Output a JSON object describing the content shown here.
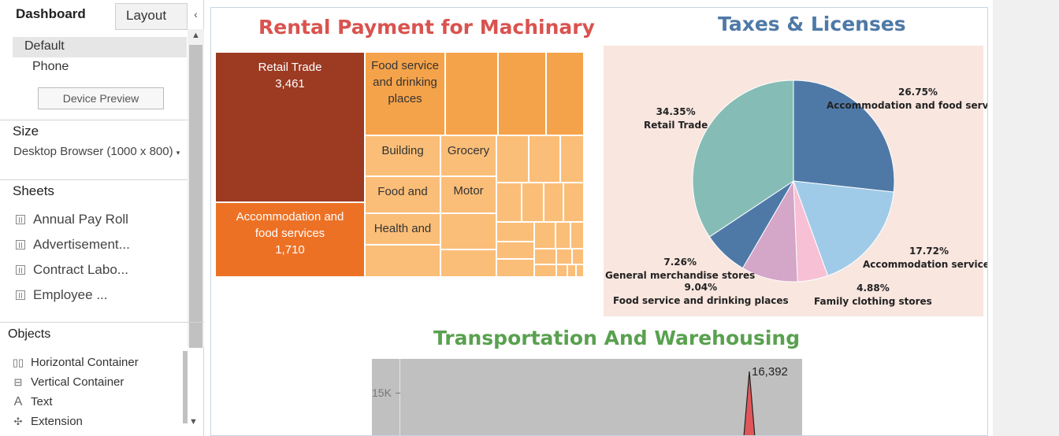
{
  "sidepane": {
    "tabs": {
      "dashboard": "Dashboard",
      "layout": "Layout",
      "collapse": "‹"
    },
    "devices": {
      "default": "Default",
      "phone": "Phone",
      "preview_button": "Device Preview"
    },
    "size": {
      "title": "Size",
      "value": "Desktop Browser (1000 x 800)",
      "arrow": "▾"
    },
    "sheets": {
      "title": "Sheets",
      "items": [
        "Annual Pay Roll",
        "Advertisement...",
        "Contract Labo...",
        "Employee ..."
      ]
    },
    "objects": {
      "title": "Objects",
      "items": [
        {
          "label": "Horizontal Container",
          "icon": "horizontal-container-icon",
          "glyph": "▯▯"
        },
        {
          "label": "Vertical Container",
          "icon": "vertical-container-icon",
          "glyph": "⊟"
        },
        {
          "label": "Text",
          "icon": "text-icon",
          "glyph": "A"
        },
        {
          "label": "Extension",
          "icon": "extension-icon",
          "glyph": "✣"
        }
      ]
    },
    "scroll": {
      "up": "▲",
      "down": "▼"
    }
  },
  "dashboard": {
    "rental": {
      "title": "Rental Payment for Machinary",
      "cells": {
        "retail_label": "Retail Trade",
        "retail_value": "3,461",
        "accom_label": "Accommodation and food services",
        "accom_value": "1,710",
        "food_label": "Food service and drinking places",
        "building": "Building",
        "grocery": "Grocery",
        "food_and": "Food and",
        "motor": "Motor",
        "health": "Health and"
      },
      "colors": {
        "dark": "#9c3a22",
        "mid": "#ed7125",
        "light1": "#f5a34a",
        "light2": "#f8b166",
        "light3": "#fbbe78"
      }
    },
    "taxes": {
      "title": "Taxes & Licenses",
      "chart_data": {
        "type": "pie",
        "title": "Taxes & Licenses",
        "slices": [
          {
            "label": "Accommodation and food services",
            "value": 26.75,
            "color": "#4e79a7"
          },
          {
            "label": "Accommodation services",
            "value": 17.72,
            "color": "#a0cbe8"
          },
          {
            "label": "Family clothing stores",
            "value": 4.88,
            "color": "#f7c0d4"
          },
          {
            "label": "Food service and drinking places",
            "value": 9.04,
            "color": "#d4a6c8"
          },
          {
            "label": "General merchandise stores",
            "value": 7.26,
            "color": "#4e79a7"
          },
          {
            "label": "Retail Trade",
            "value": 34.35,
            "color": "#86bcb6"
          }
        ]
      },
      "labels": {
        "s1_pct": "26.75%",
        "s1_name": "Accommodation and food services",
        "s2_pct": "17.72%",
        "s2_name": "Accommodation services",
        "s3_pct": "4.88%",
        "s3_name": "Family clothing stores",
        "s4_pct": "9.04%",
        "s4_name": "Food service and drinking places",
        "s5_pct": "7.26%",
        "s5_name": "General merchandise stores",
        "s6_pct": "34.35%",
        "s6_name": "Retail Trade"
      },
      "background": "#f8e6df"
    },
    "transport": {
      "title": "Transportation And Warehousing",
      "chart_data": {
        "type": "line",
        "title": "Transportation And Warehousing",
        "ytick": "15K",
        "peak_value": 16392,
        "peak_label": "16,392",
        "area_color": "#e15759"
      }
    }
  }
}
